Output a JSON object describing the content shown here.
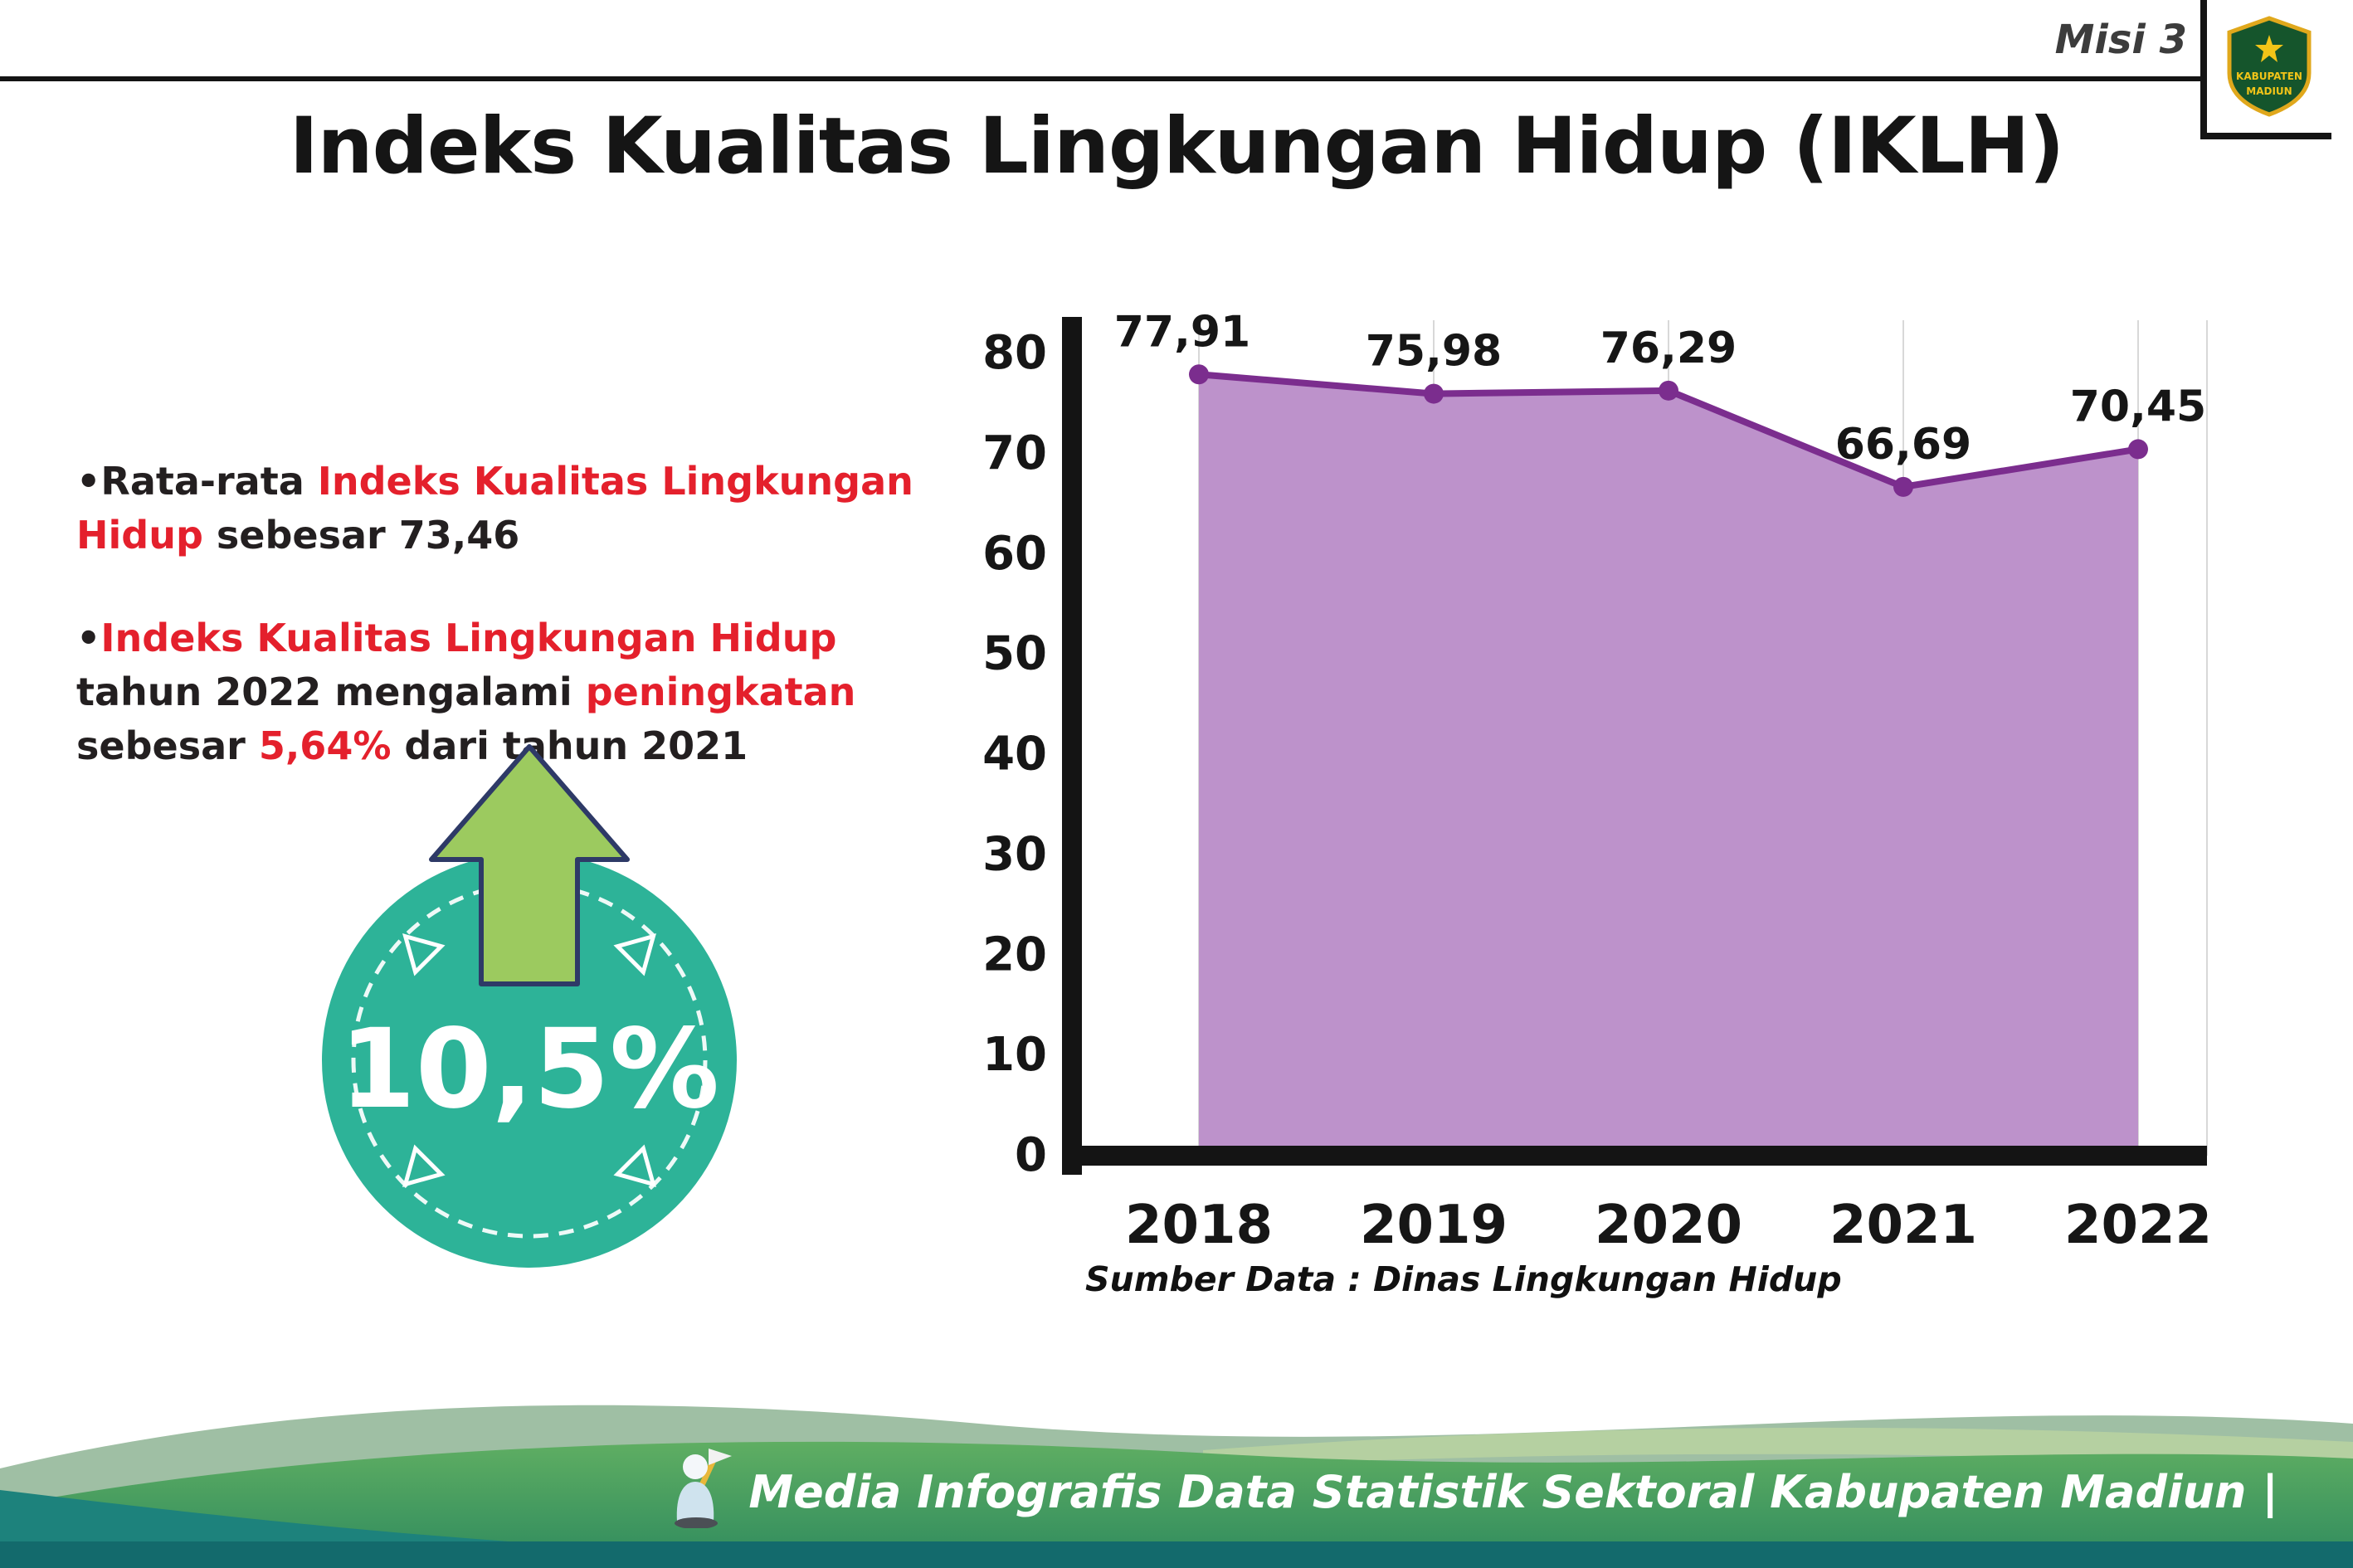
{
  "header": {
    "misi_label": "Misi 3",
    "logo": {
      "line1": "KABUPATEN",
      "line2": "MADIUN"
    }
  },
  "title": "Indeks Kualitas Lingkungan Hidup (IKLH)",
  "bullets": {
    "marker": "•",
    "items": [
      {
        "segments": [
          {
            "text": "Rata-rata ",
            "style": "normal"
          },
          {
            "text": "Indeks Kualitas Lingkungan Hidup",
            "style": "red"
          },
          {
            "text": " sebesar 73,46",
            "style": "normal"
          }
        ]
      },
      {
        "segments": [
          {
            "text": "Indeks Kualitas Lingkungan Hidup",
            "style": "red"
          },
          {
            "text": " tahun 2022 mengalami ",
            "style": "normal"
          },
          {
            "text": "peningkatan",
            "style": "red"
          },
          {
            "text": " sebesar ",
            "style": "normal"
          },
          {
            "text": "5,64%",
            "style": "red"
          },
          {
            "text": " dari tahun 2021",
            "style": "normal"
          }
        ]
      }
    ]
  },
  "badge": {
    "value": "10,5%",
    "circle_color": "#2db398",
    "arrow_color": "#9cca5f"
  },
  "chart_data": {
    "type": "area",
    "title": "Indeks Kualitas Lingkungan Hidup (IKLH)",
    "categories": [
      "2018",
      "2019",
      "2020",
      "2021",
      "2022"
    ],
    "values": [
      77.91,
      75.98,
      76.29,
      66.69,
      70.45
    ],
    "value_labels": [
      "77,91",
      "75,98",
      "76,29",
      "66,69",
      "70,45"
    ],
    "ylim": [
      0,
      80
    ],
    "ytick_step": 10,
    "grid": "vertical",
    "legend": "none",
    "colors": {
      "fill": "#bd92cb",
      "line": "#7b2d8e"
    }
  },
  "source_caption": "Sumber Data : Dinas Lingkungan Hidup",
  "footer": {
    "caption": "Media Infografis Data Statistik Sektoral Kabupaten Madiun |"
  },
  "accent_colors": {
    "red": "#e4202c",
    "teal": "#2db398",
    "arrow_green": "#9cca5f",
    "purple_fill": "#bd92cb",
    "purple_line": "#7b2d8e"
  }
}
